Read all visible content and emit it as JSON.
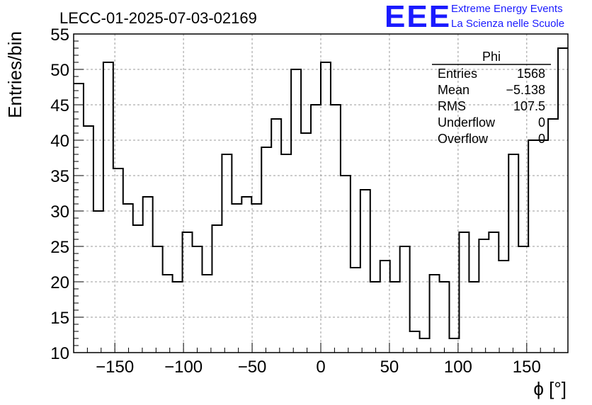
{
  "chart_data": {
    "type": "histogram",
    "title": "LECC-01-2025-07-03-02169",
    "xlabel": "ϕ [°]",
    "ylabel": "Entries/bin",
    "xlim": [
      -180,
      180
    ],
    "ylim": [
      10,
      55
    ],
    "xticks": [
      -150,
      -100,
      -50,
      0,
      50,
      100,
      150
    ],
    "xtick_labels": [
      "−150",
      "−100",
      "−50",
      "0",
      "50",
      "100",
      "150"
    ],
    "yticks": [
      10,
      15,
      20,
      25,
      30,
      35,
      40,
      45,
      50,
      55
    ],
    "grid": true,
    "bin_edges_start": -180,
    "bin_width": 7.2,
    "values": [
      48,
      42,
      30,
      51,
      36,
      31,
      28,
      32,
      25,
      21,
      20,
      27,
      25,
      21,
      28,
      38,
      31,
      32,
      31,
      39,
      43,
      38,
      50,
      41,
      45,
      51,
      45,
      35,
      22,
      33,
      20,
      23,
      20,
      25,
      13,
      12,
      21,
      20,
      12,
      27,
      20,
      26,
      27,
      23,
      38,
      25,
      40,
      40,
      43,
      53
    ],
    "stats_box": {
      "name": "Phi",
      "rows": [
        {
          "label": "Entries",
          "value": "1568"
        },
        {
          "label": "Mean",
          "value": "−5.138"
        },
        {
          "label": "RMS",
          "value": "107.5"
        },
        {
          "label": "Underflow",
          "value": "0"
        },
        {
          "label": "Overflow",
          "value": "0"
        }
      ]
    }
  },
  "branding": {
    "logo": "EEE",
    "line1": "Extreme Energy Events",
    "line2": "La Scienza nelle Scuole",
    "color": "#1a1aff"
  }
}
